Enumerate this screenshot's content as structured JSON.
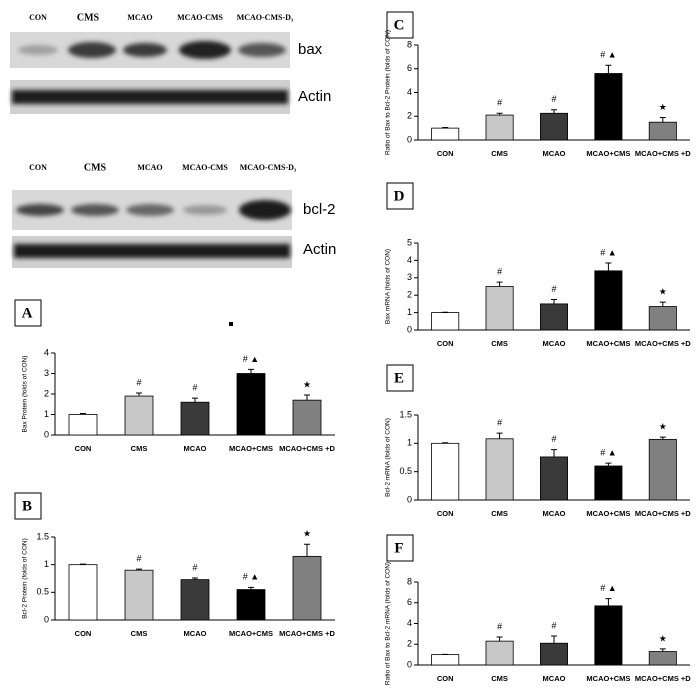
{
  "blots": [
    {
      "lanes": [
        "CON",
        "CMS",
        "MCAO",
        "MCAO-CMS",
        "MCAO-CMS-D₃"
      ],
      "bands": [
        "bax",
        "Actin"
      ]
    },
    {
      "lanes": [
        "CON",
        "CMS",
        "MCAO",
        "MCAO-CMS",
        "MCAO-CMS-D₃"
      ],
      "bands": [
        "bcl-2",
        "Actin"
      ]
    }
  ],
  "chart_data": [
    {
      "type": "bar",
      "panel": "A",
      "ylabel": "Bax  Protein (folds of CON)",
      "categories": [
        "CON",
        "CMS",
        "MCAO",
        "MCAO+CMS",
        "MCAO+CMS +D"
      ],
      "values": [
        1,
        1.9,
        1.6,
        3.0,
        1.7
      ],
      "errors": [
        0.05,
        0.15,
        0.2,
        0.2,
        0.25
      ],
      "markers": [
        null,
        "#",
        "#",
        "# ▲",
        "★"
      ],
      "colors": [
        "#ffffff",
        "#c8c8c8",
        "#3a3a3a",
        "#000000",
        "#808080"
      ],
      "ylim": [
        0,
        4
      ],
      "yticks": [
        0,
        1,
        2,
        3,
        4
      ]
    },
    {
      "type": "bar",
      "panel": "B",
      "ylabel": "Bcl-2 Protein (folds of CON)",
      "categories": [
        "CON",
        "CMS",
        "MCAO",
        "MCAO+CMS",
        "MCAO+CMS +D"
      ],
      "values": [
        1,
        0.9,
        0.73,
        0.55,
        1.15
      ],
      "errors": [
        0.01,
        0.02,
        0.03,
        0.04,
        0.22
      ],
      "markers": [
        null,
        "#",
        "#",
        "# ▲",
        "★"
      ],
      "colors": [
        "#ffffff",
        "#c8c8c8",
        "#3a3a3a",
        "#000000",
        "#808080"
      ],
      "ylim": [
        0,
        1.5
      ],
      "yticks": [
        0,
        0.5,
        1,
        1.5
      ]
    },
    {
      "type": "bar",
      "panel": "C",
      "ylabel": "Ratio of Bax to  Bcl-2 Protein (folds of CON)",
      "categories": [
        "CON",
        "CMS",
        "MCAO",
        "MCAO+CMS",
        "MCAO+CMS +D"
      ],
      "values": [
        1,
        2.1,
        2.25,
        5.6,
        1.5
      ],
      "errors": [
        0.05,
        0.15,
        0.3,
        0.7,
        0.4
      ],
      "markers": [
        null,
        "#",
        "#",
        "# ▲",
        "★"
      ],
      "colors": [
        "#ffffff",
        "#c8c8c8",
        "#3a3a3a",
        "#000000",
        "#808080"
      ],
      "ylim": [
        0,
        8
      ],
      "yticks": [
        0,
        2,
        4,
        6,
        8
      ]
    },
    {
      "type": "bar",
      "panel": "D",
      "ylabel": "Bax  mRNA (folds of CON)",
      "categories": [
        "CON",
        "CMS",
        "MCAO",
        "MCAO+CMS",
        "MCAO+CMS +D"
      ],
      "values": [
        1,
        2.5,
        1.5,
        3.4,
        1.35
      ],
      "errors": [
        0.02,
        0.25,
        0.25,
        0.45,
        0.25
      ],
      "markers": [
        null,
        "#",
        "#",
        "# ▲",
        "★"
      ],
      "colors": [
        "#ffffff",
        "#c8c8c8",
        "#3a3a3a",
        "#000000",
        "#808080"
      ],
      "ylim": [
        0,
        5
      ],
      "yticks": [
        0,
        1,
        2,
        3,
        4,
        5
      ]
    },
    {
      "type": "bar",
      "panel": "E",
      "ylabel": "Bcl-2  mRNA (folds of CON)",
      "categories": [
        "CON",
        "CMS",
        "MCAO",
        "MCAO+CMS",
        "MCAO+CMS +D"
      ],
      "values": [
        1,
        1.08,
        0.76,
        0.6,
        1.07
      ],
      "errors": [
        0.01,
        0.1,
        0.13,
        0.05,
        0.04
      ],
      "markers": [
        null,
        "#",
        "#",
        "# ▲",
        "★"
      ],
      "colors": [
        "#ffffff",
        "#c8c8c8",
        "#3a3a3a",
        "#000000",
        "#808080"
      ],
      "ylim": [
        0,
        1.5
      ],
      "yticks": [
        0,
        0.5,
        1,
        1.5
      ]
    },
    {
      "type": "bar",
      "panel": "F",
      "ylabel": "Ratio of Bax to  Bcl-2 mRNA (folds of CON)",
      "categories": [
        "CON",
        "CMS",
        "MCAO",
        "MCAO+CMS",
        "MCAO+CMS +D"
      ],
      "values": [
        1,
        2.3,
        2.1,
        5.7,
        1.3
      ],
      "errors": [
        0.02,
        0.4,
        0.7,
        0.7,
        0.25
      ],
      "markers": [
        null,
        "#",
        "#",
        "# ▲",
        "★"
      ],
      "colors": [
        "#ffffff",
        "#c8c8c8",
        "#3a3a3a",
        "#000000",
        "#808080"
      ],
      "ylim": [
        0,
        8
      ],
      "yticks": [
        0,
        2,
        4,
        6,
        8
      ]
    }
  ]
}
